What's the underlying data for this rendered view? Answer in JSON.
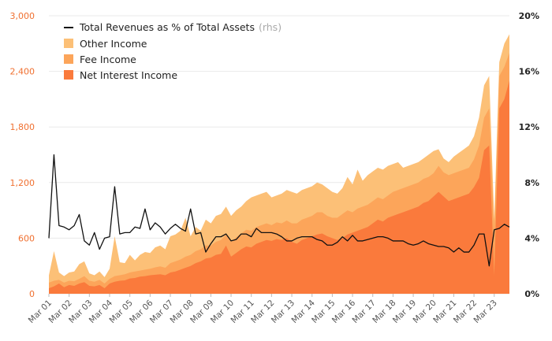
{
  "chart_data": {
    "type": "area",
    "y_left": {
      "ylim": [
        0,
        3000
      ],
      "ticks": [
        0,
        600,
        1200,
        1800,
        2400,
        3000
      ],
      "tick_labels": [
        "0",
        "600",
        "1,200",
        "1,800",
        "2,400",
        "3,000"
      ]
    },
    "y_right": {
      "ylim": [
        0,
        20
      ],
      "ticks": [
        0,
        4,
        8,
        12,
        16,
        20
      ],
      "tick_labels": [
        "0%",
        "4%",
        "8%",
        "12%",
        "16%",
        "20%"
      ]
    },
    "x_ticks": [
      "Mar 01",
      "Mar 02",
      "Mar 03",
      "Mar 04",
      "Mar 05",
      "Mar 06",
      "Mar 07",
      "Mar 08",
      "Mar 09",
      "Mar 10",
      "Mar 11",
      "Mar 12",
      "Mar 13",
      "Mar 14",
      "Mar 15",
      "Mar 16",
      "Mar 17",
      "Mar 18",
      "Mar 19",
      "Mar 20",
      "Mar 21",
      "Mar 22",
      "Mar 23"
    ],
    "legend": [
      {
        "name": "Total Revenues as % of Total Assets",
        "suffix": "(rhs)",
        "kind": "line",
        "color": "#111111"
      },
      {
        "name": "Other Income",
        "kind": "area",
        "color": "#fcc077"
      },
      {
        "name": "Fee Income",
        "kind": "area",
        "color": "#fca55a"
      },
      {
        "name": "Net Interest Income",
        "kind": "area",
        "color": "#fa7a3c"
      }
    ],
    "x": [
      2001.0,
      2001.25,
      2001.5,
      2001.75,
      2002.0,
      2002.25,
      2002.5,
      2002.75,
      2003.0,
      2003.25,
      2003.5,
      2003.75,
      2004.0,
      2004.25,
      2004.5,
      2004.75,
      2005.0,
      2005.25,
      2005.5,
      2005.75,
      2006.0,
      2006.25,
      2006.5,
      2006.75,
      2007.0,
      2007.25,
      2007.5,
      2007.75,
      2008.0,
      2008.25,
      2008.5,
      2008.75,
      2009.0,
      2009.25,
      2009.5,
      2009.75,
      2010.0,
      2010.25,
      2010.5,
      2010.75,
      2011.0,
      2011.25,
      2011.5,
      2011.75,
      2012.0,
      2012.25,
      2012.5,
      2012.75,
      2013.0,
      2013.25,
      2013.5,
      2013.75,
      2014.0,
      2014.25,
      2014.5,
      2014.75,
      2015.0,
      2015.25,
      2015.5,
      2015.75,
      2016.0,
      2016.25,
      2016.5,
      2016.75,
      2017.0,
      2017.25,
      2017.5,
      2017.75,
      2018.0,
      2018.25,
      2018.5,
      2018.75,
      2019.0,
      2019.25,
      2019.5,
      2019.75,
      2020.0,
      2020.25,
      2020.5,
      2020.75,
      2021.0,
      2021.25,
      2021.5,
      2021.75,
      2022.0,
      2022.25,
      2022.5,
      2022.75,
      2023.0,
      2023.25,
      2023.5,
      2023.75
    ],
    "series": [
      {
        "name": "Net Interest Income",
        "values": [
          60,
          80,
          110,
          70,
          95,
          85,
          110,
          125,
          85,
          80,
          95,
          60,
          110,
          130,
          140,
          145,
          165,
          170,
          185,
          190,
          200,
          205,
          210,
          200,
          230,
          240,
          260,
          280,
          300,
          330,
          350,
          380,
          390,
          420,
          430,
          520,
          400,
          440,
          480,
          510,
          500,
          540,
          560,
          580,
          570,
          590,
          580,
          600,
          560,
          540,
          580,
          600,
          620,
          640,
          650,
          620,
          600,
          580,
          600,
          640,
          660,
          680,
          700,
          720,
          760,
          800,
          780,
          820,
          840,
          860,
          880,
          900,
          920,
          940,
          980,
          1000,
          1050,
          1100,
          1050,
          1000,
          1020,
          1040,
          1060,
          1080,
          1150,
          1250,
          1550,
          1600,
          200,
          2000,
          2100,
          2300
        ]
      },
      {
        "name": "Fee Income",
        "values": [
          120,
          140,
          150,
          120,
          140,
          135,
          160,
          190,
          140,
          130,
          150,
          110,
          160,
          190,
          200,
          210,
          230,
          240,
          250,
          260,
          270,
          285,
          295,
          280,
          330,
          350,
          370,
          400,
          420,
          460,
          480,
          520,
          520,
          560,
          580,
          640,
          560,
          610,
          650,
          690,
          680,
          720,
          740,
          760,
          740,
          770,
          760,
          790,
          760,
          760,
          800,
          820,
          840,
          880,
          880,
          840,
          820,
          820,
          860,
          900,
          880,
          920,
          940,
          960,
          1000,
          1040,
          1020,
          1060,
          1100,
          1120,
          1140,
          1160,
          1180,
          1200,
          1240,
          1260,
          1300,
          1380,
          1310,
          1280,
          1300,
          1320,
          1340,
          1360,
          1450,
          1600,
          1900,
          2000,
          700,
          2350,
          2450,
          2600
        ]
      },
      {
        "name": "Other Income",
        "values": [
          200,
          460,
          230,
          190,
          230,
          240,
          320,
          350,
          220,
          200,
          240,
          180,
          270,
          620,
          340,
          330,
          420,
          360,
          420,
          450,
          440,
          500,
          520,
          480,
          620,
          640,
          680,
          820,
          620,
          720,
          680,
          800,
          760,
          840,
          860,
          940,
          840,
          900,
          940,
          1000,
          1040,
          1060,
          1080,
          1100,
          1040,
          1060,
          1080,
          1120,
          1100,
          1080,
          1120,
          1140,
          1160,
          1200,
          1180,
          1140,
          1100,
          1080,
          1140,
          1260,
          1180,
          1340,
          1220,
          1280,
          1320,
          1360,
          1340,
          1380,
          1400,
          1420,
          1360,
          1380,
          1400,
          1420,
          1460,
          1500,
          1540,
          1560,
          1460,
          1420,
          1480,
          1520,
          1560,
          1600,
          1700,
          1900,
          2250,
          2350,
          800,
          2500,
          2700,
          2800
        ]
      },
      {
        "name": "Total Revenues as % of Total Assets",
        "axis": "right",
        "values": [
          4.0,
          10.0,
          4.9,
          4.8,
          4.6,
          4.9,
          5.7,
          3.8,
          3.5,
          4.4,
          3.2,
          4.0,
          4.1,
          7.7,
          4.3,
          4.4,
          4.4,
          4.8,
          4.7,
          6.1,
          4.6,
          5.1,
          4.8,
          4.3,
          4.7,
          5.0,
          4.7,
          4.5,
          6.1,
          4.3,
          4.4,
          3.0,
          3.6,
          4.1,
          4.1,
          4.3,
          3.8,
          3.9,
          4.3,
          4.3,
          4.1,
          4.7,
          4.4,
          4.4,
          4.4,
          4.3,
          4.1,
          3.8,
          3.8,
          4.0,
          4.1,
          4.1,
          4.1,
          3.9,
          3.8,
          3.5,
          3.5,
          3.7,
          4.1,
          3.8,
          4.2,
          3.8,
          3.8,
          3.9,
          4.0,
          4.1,
          4.1,
          4.0,
          3.8,
          3.8,
          3.8,
          3.6,
          3.5,
          3.6,
          3.8,
          3.6,
          3.5,
          3.4,
          3.4,
          3.3,
          3.0,
          3.3,
          3.0,
          3.0,
          3.5,
          4.3,
          4.3,
          2.0,
          4.6,
          4.7,
          5.0,
          4.8
        ]
      }
    ]
  }
}
